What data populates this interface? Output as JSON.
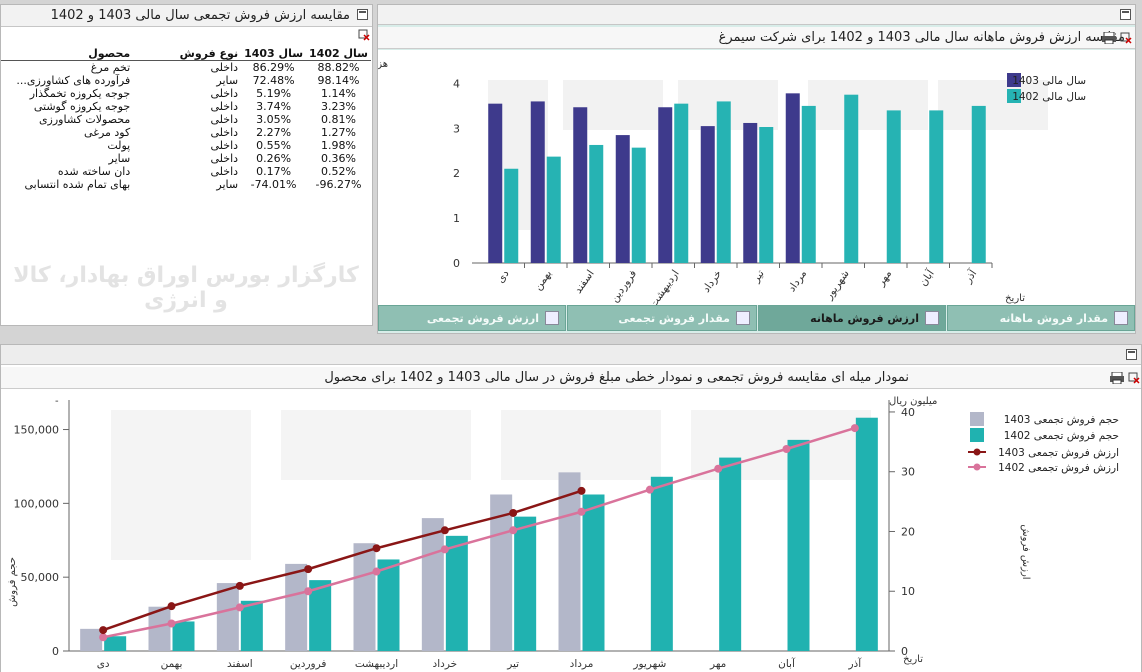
{
  "left_panel": {
    "title": "مقایسه ارزش فروش تجمعی سال مالی 1403 و 1402",
    "columns": [
      "محصول",
      "نوع فروش",
      "سال 1403",
      "سال 1402"
    ],
    "rows": [
      [
        "تخم مرغ",
        "داخلی",
        "86.29%",
        "88.82%"
      ],
      [
        "فرآورده های کشاورزی...",
        "سایر",
        "72.48%",
        "98.14%"
      ],
      [
        "جوجه یکروزه تخمگذار",
        "داخلی",
        "5.19%",
        "1.14%"
      ],
      [
        "جوجه یکروزه گوشتی",
        "داخلی",
        "3.74%",
        "3.23%"
      ],
      [
        "محصولات کشاورزی",
        "داخلی",
        "3.05%",
        "0.81%"
      ],
      [
        "کود مرغی",
        "داخلی",
        "2.27%",
        "1.27%"
      ],
      [
        "پولت",
        "داخلی",
        "0.55%",
        "1.98%"
      ],
      [
        "سایر",
        "داخلی",
        "0.26%",
        "0.36%"
      ],
      [
        "دان ساخته شده",
        "داخلی",
        "0.17%",
        "0.52%"
      ],
      [
        "بهای تمام شده انتسابی",
        "سایر",
        "-74.01%",
        "-96.27%"
      ]
    ],
    "watermark": "کارگزار بورس اوراق بهادار، کالا و انرژی"
  },
  "top_chart": {
    "title": "مقایسه ارزش فروش ماهانه سال مالی 1403 و 1402 برای شرکت سیمرغ",
    "unit_label": "هزار میلیارد ریال",
    "x_axis_label": "تاریخ",
    "legend": [
      "سال مالی 1403",
      "سال مالی 1402"
    ],
    "colors": {
      "s1403": "#3e3a8c",
      "s1402": "#26b3b3"
    }
  },
  "tabs": [
    {
      "label": "مقدار فروش ماهانه",
      "icon": "bar-chart-icon"
    },
    {
      "label": "ارزش فروش ماهانه",
      "icon": "bar-chart-icon"
    },
    {
      "label": "مقدار فروش تجمعی",
      "icon": "line-chart-icon"
    },
    {
      "label": "ارزش فروش تجمعی",
      "icon": "line-chart-icon"
    }
  ],
  "bottom_chart": {
    "title": "نمودار میله ای مقایسه فروش تجمعی و نمودار خطی مبلغ فروش در سال مالی 1403 و 1402 برای محصول",
    "left_axis_label": "حجم فروش",
    "right_unit_label": "میلیون ریال",
    "right_axis_label": "ارزش فروش",
    "x_axis_label": "تاریخ",
    "legend": [
      "حجم فروش تجمعی 1403",
      "حجم فروش تجمعی 1402",
      "ارزش فروش تجمعی 1403",
      "ارزش فروش تجمعی 1402"
    ],
    "colors": {
      "bar1403": "#b3b7c9",
      "bar1402": "#20b2b0",
      "line1403": "#8a1616",
      "line1402": "#d9739b"
    }
  },
  "chart_data": [
    {
      "type": "bar",
      "title": "مقایسه ارزش فروش ماهانه سال مالی 1403 و 1402 برای شرکت سیمرغ",
      "categories": [
        "دی",
        "بهمن",
        "اسفند",
        "فروردین",
        "اردیبهشت",
        "خرداد",
        "تیر",
        "مرداد",
        "شهریور",
        "مهر",
        "آبان",
        "آذر"
      ],
      "series": [
        {
          "name": "سال مالی 1403",
          "values": [
            3.55,
            3.6,
            3.47,
            2.85,
            3.47,
            3.05,
            3.12,
            3.78,
            null,
            null,
            null,
            null
          ]
        },
        {
          "name": "سال مالی 1402",
          "values": [
            2.1,
            2.37,
            2.63,
            2.57,
            3.55,
            3.6,
            3.03,
            3.5,
            3.75,
            3.4,
            3.4,
            3.5
          ]
        }
      ],
      "ylim": [
        0,
        4.3
      ],
      "yticks": [
        0,
        1,
        2,
        3,
        4
      ],
      "ylabel": "هزار میلیارد ریال",
      "xlabel": "تاریخ",
      "legend_position": "top-right"
    },
    {
      "type": "bar",
      "title": "نمودار میله ای مقایسه فروش تجمعی و نمودار خطی مبلغ فروش در سال مالی 1403 و 1402 برای محصول",
      "categories": [
        "دی",
        "بهمن",
        "اسفند",
        "فروردین",
        "اردیبهشت",
        "خرداد",
        "تیر",
        "مرداد",
        "شهریور",
        "مهر",
        "آبان",
        "آذر"
      ],
      "bar_series": [
        {
          "name": "حجم فروش تجمعی 1403",
          "values": [
            15000,
            30000,
            46000,
            59000,
            73000,
            90000,
            106000,
            121000,
            null,
            null,
            null,
            null
          ]
        },
        {
          "name": "حجم فروش تجمعی 1402",
          "values": [
            10000,
            20000,
            34000,
            48000,
            62000,
            78000,
            91000,
            106000,
            118000,
            131000,
            143000,
            158000
          ]
        }
      ],
      "line_series": [
        {
          "name": "ارزش فروش تجمعی 1403",
          "values": [
            3.5,
            7.5,
            10.9,
            13.7,
            17.2,
            20.2,
            23.1,
            26.8,
            null,
            null,
            null,
            null
          ]
        },
        {
          "name": "ارزش فروش تجمعی 1402",
          "values": [
            2.3,
            4.6,
            7.3,
            10.0,
            13.3,
            17.0,
            20.2,
            23.3,
            27.0,
            30.5,
            33.8,
            37.3
          ]
        }
      ],
      "y_left_lim": [
        0,
        170000
      ],
      "y_left_ticks": [
        0,
        50000,
        100000,
        150000
      ],
      "y_left_tick_labels": [
        "0",
        "50,000",
        "100,000",
        "150,000"
      ],
      "y_right_lim": [
        0,
        42
      ],
      "y_right_ticks": [
        0,
        10,
        20,
        30,
        40
      ],
      "ylabel_left": "حجم فروش",
      "ylabel_right": "ارزش فروش",
      "right_unit": "میلیون ریال",
      "xlabel": "تاریخ",
      "legend_position": "top-right"
    }
  ]
}
